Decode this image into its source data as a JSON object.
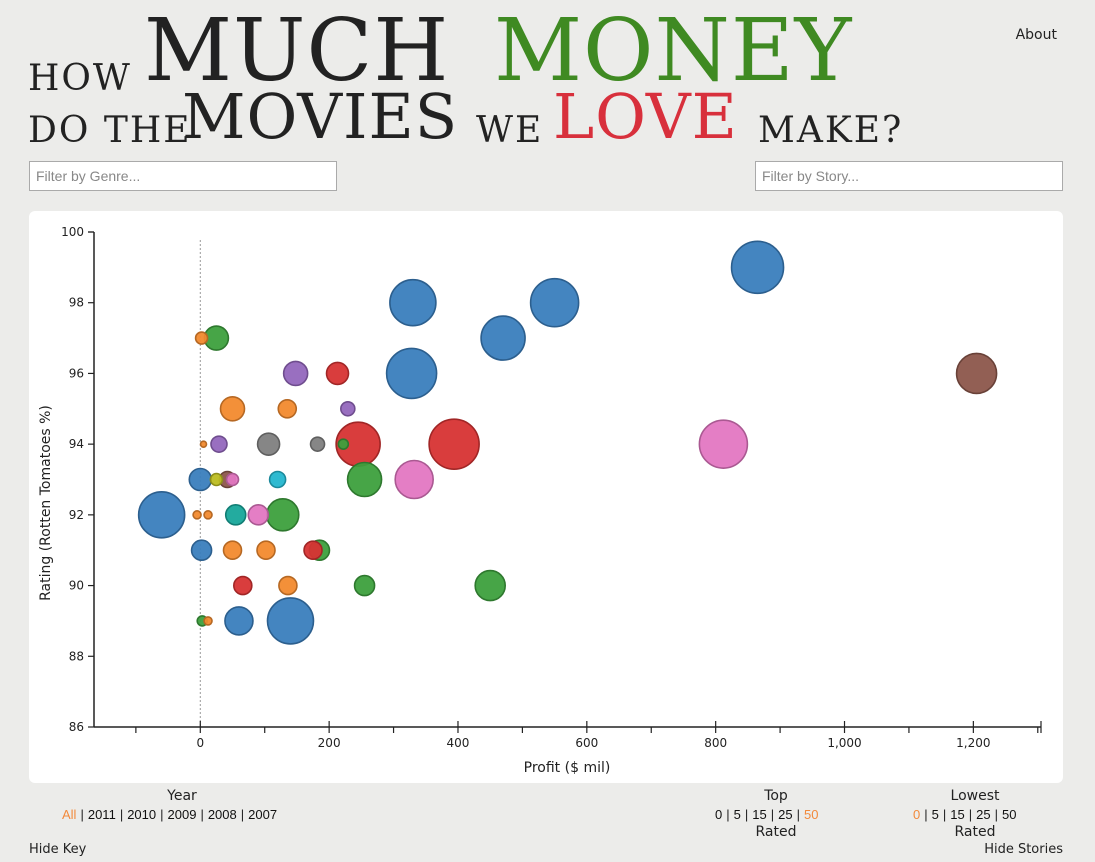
{
  "header": {
    "how": "HOW",
    "much": "MUCH",
    "money": "MONEY",
    "do_the": "DO THE",
    "movies": "MOVIES",
    "we": "WE",
    "love": "LOVE",
    "make": "MAKE?",
    "about": "About"
  },
  "filters": {
    "genre_placeholder": "Filter by Genre...",
    "story_placeholder": "Filter by Story..."
  },
  "colors": {
    "blue": "#3a7ebd",
    "orange": "#f28a2e",
    "green": "#3da03d",
    "red": "#d73333",
    "purple": "#9467bd",
    "brown": "#8c564b",
    "pink": "#e377c2",
    "gray": "#7f7f7f",
    "olive": "#bcbd22",
    "teal": "#17a79a",
    "cyan": "#24b6cf"
  },
  "chart_data": {
    "type": "scatter",
    "xlabel": "Profit ($ mil)",
    "ylabel": "Rating (Rotten Tomatoes %)",
    "xlim": [
      -165,
      1305
    ],
    "ylim": [
      86,
      100
    ],
    "xticks": [
      0,
      200,
      400,
      600,
      800,
      1000,
      1200
    ],
    "xtick_labels": [
      "0",
      "200",
      "400",
      "600",
      "800",
      "1,000",
      "1,200"
    ],
    "yticks": [
      86,
      88,
      90,
      92,
      94,
      96,
      98,
      100
    ],
    "reference_line_x": 0,
    "points": [
      {
        "x": 865,
        "y": 99,
        "r": 26,
        "c": "blue"
      },
      {
        "x": 550,
        "y": 98,
        "r": 24,
        "c": "blue"
      },
      {
        "x": 330,
        "y": 98,
        "r": 23,
        "c": "blue"
      },
      {
        "x": 470,
        "y": 97,
        "r": 22,
        "c": "blue"
      },
      {
        "x": 328,
        "y": 96,
        "r": 25,
        "c": "blue"
      },
      {
        "x": 1205,
        "y": 96,
        "r": 20,
        "c": "brown"
      },
      {
        "x": 25,
        "y": 97,
        "r": 12,
        "c": "green"
      },
      {
        "x": 2,
        "y": 97,
        "r": 6,
        "c": "orange"
      },
      {
        "x": 148,
        "y": 96,
        "r": 12,
        "c": "purple"
      },
      {
        "x": 213,
        "y": 96,
        "r": 11,
        "c": "red"
      },
      {
        "x": 50,
        "y": 95,
        "r": 12,
        "c": "orange"
      },
      {
        "x": 135,
        "y": 95,
        "r": 9,
        "c": "orange"
      },
      {
        "x": 229,
        "y": 95,
        "r": 7,
        "c": "purple"
      },
      {
        "x": 5,
        "y": 94,
        "r": 3,
        "c": "orange"
      },
      {
        "x": 29,
        "y": 94,
        "r": 8,
        "c": "purple"
      },
      {
        "x": 106,
        "y": 94,
        "r": 11,
        "c": "gray"
      },
      {
        "x": 182,
        "y": 94,
        "r": 7,
        "c": "gray"
      },
      {
        "x": 245,
        "y": 94,
        "r": 22,
        "c": "red"
      },
      {
        "x": 222,
        "y": 94,
        "r": 5,
        "c": "green"
      },
      {
        "x": 394,
        "y": 94,
        "r": 25,
        "c": "red"
      },
      {
        "x": 812,
        "y": 94,
        "r": 24,
        "c": "pink"
      },
      {
        "x": 0,
        "y": 93,
        "r": 11,
        "c": "blue"
      },
      {
        "x": 25,
        "y": 93,
        "r": 6,
        "c": "olive"
      },
      {
        "x": 50,
        "y": 93,
        "r": 6,
        "c": "pink"
      },
      {
        "x": 42,
        "y": 93,
        "r": 8,
        "c": "brown"
      },
      {
        "x": 120,
        "y": 93,
        "r": 8,
        "c": "cyan"
      },
      {
        "x": 255,
        "y": 93,
        "r": 17,
        "c": "green"
      },
      {
        "x": 332,
        "y": 93,
        "r": 19,
        "c": "pink"
      },
      {
        "x": -60,
        "y": 92,
        "r": 23,
        "c": "blue"
      },
      {
        "x": -5,
        "y": 92,
        "r": 4,
        "c": "orange"
      },
      {
        "x": 12,
        "y": 92,
        "r": 4,
        "c": "orange"
      },
      {
        "x": 55,
        "y": 92,
        "r": 10,
        "c": "teal"
      },
      {
        "x": 90,
        "y": 92,
        "r": 10,
        "c": "pink"
      },
      {
        "x": 128,
        "y": 92,
        "r": 16,
        "c": "green"
      },
      {
        "x": 2,
        "y": 91,
        "r": 10,
        "c": "blue"
      },
      {
        "x": 50,
        "y": 91,
        "r": 9,
        "c": "orange"
      },
      {
        "x": 102,
        "y": 91,
        "r": 9,
        "c": "orange"
      },
      {
        "x": 175,
        "y": 91,
        "r": 9,
        "c": "red"
      },
      {
        "x": 185,
        "y": 91,
        "r": 10,
        "c": "green"
      },
      {
        "x": 66,
        "y": 90,
        "r": 9,
        "c": "red"
      },
      {
        "x": 136,
        "y": 90,
        "r": 9,
        "c": "orange"
      },
      {
        "x": 255,
        "y": 90,
        "r": 10,
        "c": "green"
      },
      {
        "x": 450,
        "y": 90,
        "r": 15,
        "c": "green"
      },
      {
        "x": 3,
        "y": 89,
        "r": 5,
        "c": "green"
      },
      {
        "x": 12,
        "y": 89,
        "r": 4,
        "c": "orange"
      },
      {
        "x": 60,
        "y": 89,
        "r": 14,
        "c": "blue"
      },
      {
        "x": 140,
        "y": 89,
        "r": 23,
        "c": "blue"
      }
    ]
  },
  "controls": {
    "year_title": "Year",
    "years": [
      "All",
      "2011",
      "2010",
      "2009",
      "2008",
      "2007"
    ],
    "year_active": "All",
    "top_title": "Top",
    "top_options": [
      "0",
      "5",
      "15",
      "25",
      "50"
    ],
    "top_active": "50",
    "top_sub": "Rated",
    "lowest_title": "Lowest",
    "lowest_options": [
      "0",
      "5",
      "15",
      "25",
      "50"
    ],
    "lowest_active": "0",
    "lowest_sub": "Rated",
    "hide_key": "Hide Key",
    "hide_stories": "Hide Stories"
  }
}
